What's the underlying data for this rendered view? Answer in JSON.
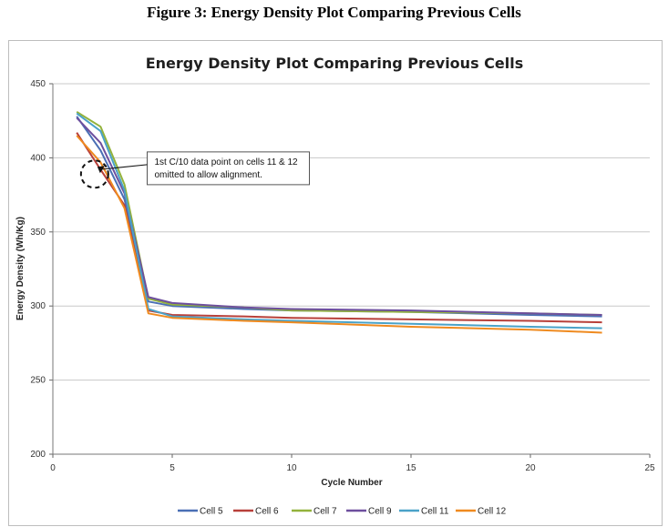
{
  "figure_title": "Figure 3: Energy Density Plot Comparing Previous Cells",
  "colors": {
    "Cell 5": "#4a6fb5",
    "Cell 6": "#b8403a",
    "Cell 7": "#93b23c",
    "Cell 9": "#6d4f9e",
    "Cell 11": "#4aa2c8",
    "Cell 12": "#ef8a1f",
    "grid": "#c8c8c8"
  },
  "chart_data": {
    "type": "line",
    "title": "Energy Density Plot Comparing Previous Cells",
    "xlabel": "Cycle Number",
    "ylabel": "Energy Density (Wh/Kg)",
    "xlim": [
      0,
      25
    ],
    "ylim": [
      200,
      450
    ],
    "xticks": [
      0,
      5,
      10,
      15,
      20,
      25
    ],
    "yticks": [
      200,
      250,
      300,
      350,
      400,
      450
    ],
    "grid": "horizontal",
    "legend_position": "bottom",
    "annotation": "1st C/10 data point on cells 11 & 12 omitted to allow alignment.",
    "annotation_lines": [
      "1st C/10 data point on cells 11 & 12",
      "omitted to allow alignment."
    ],
    "series": [
      {
        "name": "Cell 5",
        "x": [
          1,
          2,
          3,
          4,
          5,
          8,
          10,
          15,
          20,
          23
        ],
        "y": [
          428,
          405,
          372,
          303,
          300,
          298,
          297,
          296,
          294,
          293
        ]
      },
      {
        "name": "Cell 6",
        "x": [
          1,
          2,
          3,
          4,
          5,
          8,
          10,
          15,
          20,
          23
        ],
        "y": [
          417,
          392,
          368,
          297,
          294,
          293,
          292,
          291,
          290,
          289
        ]
      },
      {
        "name": "Cell 7",
        "x": [
          1,
          2,
          3,
          4,
          5,
          8,
          10,
          15,
          20,
          23
        ],
        "y": [
          431,
          421,
          382,
          305,
          301,
          299,
          297,
          296,
          295,
          294
        ]
      },
      {
        "name": "Cell 9",
        "x": [
          1,
          2,
          3,
          4,
          5,
          8,
          10,
          15,
          20,
          23
        ],
        "y": [
          427,
          410,
          376,
          306,
          302,
          299,
          298,
          297,
          295,
          294
        ]
      },
      {
        "name": "Cell 11",
        "x": [
          1,
          2,
          3,
          4,
          5,
          8,
          10,
          15,
          20,
          23
        ],
        "y": [
          430,
          418,
          378,
          298,
          293,
          291,
          290,
          288,
          286,
          285
        ]
      },
      {
        "name": "Cell 12",
        "x": [
          1,
          2,
          3,
          4,
          5,
          8,
          10,
          15,
          20,
          23
        ],
        "y": [
          415,
          397,
          366,
          295,
          292,
          290,
          289,
          286,
          284,
          282
        ]
      }
    ]
  }
}
